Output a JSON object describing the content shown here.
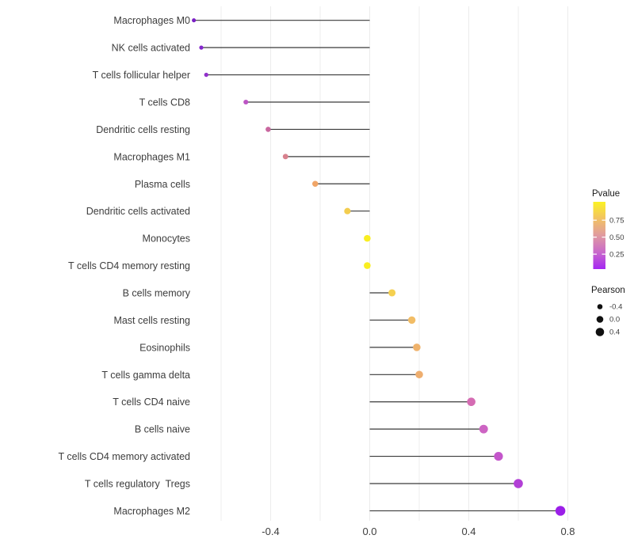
{
  "chart_data": {
    "type": "scatter",
    "variant": "lollipop",
    "title": "",
    "xlabel": "",
    "ylabel": "",
    "categories": [
      "Macrophages M0",
      "NK cells activated",
      "T cells follicular helper",
      "T cells CD8",
      "Dendritic cells resting",
      "Macrophages M1",
      "Plasma cells",
      "Dendritic cells activated",
      "Monocytes",
      "T cells CD4 memory resting",
      "B cells memory",
      "Mast cells resting",
      "Eosinophils",
      "T cells gamma delta",
      "T cells CD4 naive",
      "B cells naive",
      "T cells CD4 memory activated",
      "T cells regulatory  Tregs",
      "Macrophages M2"
    ],
    "series": [
      {
        "name": "Pearson",
        "values": [
          -0.71,
          -0.68,
          -0.66,
          -0.5,
          -0.41,
          -0.34,
          -0.22,
          -0.09,
          -0.01,
          -0.01,
          0.09,
          0.17,
          0.19,
          0.2,
          0.41,
          0.46,
          0.52,
          0.6,
          0.77
        ]
      }
    ],
    "point_colors": [
      "#7a1fc4",
      "#8527cd",
      "#9130cb",
      "#bc54c4",
      "#c9679f",
      "#d8818e",
      "#f0a567",
      "#f3cd4f",
      "#f9ee21",
      "#f9ee21",
      "#f5d050",
      "#f2bd66",
      "#efb26b",
      "#eeae6f",
      "#d56cb3",
      "#cd64c3",
      "#c456cb",
      "#b23fd6",
      "#9b1fe8"
    ],
    "xlim": [
      -0.76,
      0.85
    ],
    "x_ticks": [
      -0.4,
      0.0,
      0.4,
      0.8
    ],
    "x_tick_labels": [
      "-0.4",
      "0.0",
      "0.4",
      "0.8"
    ],
    "gridline_values": [
      -0.6,
      -0.4,
      -0.2,
      0.0,
      0.2,
      0.4,
      0.6,
      0.8
    ],
    "grid": "vertical-only",
    "legend_position": "right",
    "baseline_value": 0
  },
  "legend": {
    "pvalue": {
      "title": "Pvalue",
      "tick_labels": [
        "0.75",
        "0.50",
        "0.25"
      ],
      "gradient_colors": [
        "#fbf224",
        "#f2c263",
        "#e09aa0",
        "#c969cb",
        "#a527f2"
      ]
    },
    "pearson": {
      "title": "Pearson",
      "items": [
        {
          "label": "-0.4",
          "value": -0.4
        },
        {
          "label": "0.0",
          "value": 0.0
        },
        {
          "label": "0.4",
          "value": 0.4
        }
      ],
      "dot_color": "#101010"
    }
  },
  "style_colors": {
    "background": "#ffffff",
    "gridline": "#ececec",
    "segment": "#3a3a3a",
    "axis_text": "#3d3d3d",
    "legend_title_text": "#1a1a1a"
  }
}
